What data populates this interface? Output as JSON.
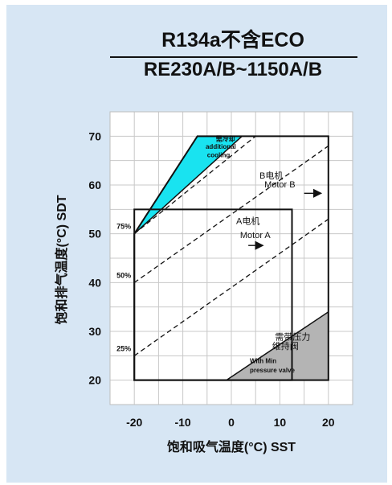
{
  "chart_data": {
    "type": "area",
    "title": "R134a不含ECO",
    "subtitle": "RE230A/B~1150A/B",
    "xlabel": "饱和吸气温度(°C) SST",
    "ylabel": "饱和排气温度(°C) SDT",
    "xlim": [
      -25,
      25
    ],
    "ylim": [
      15,
      75
    ],
    "xticks": [
      "-20",
      "-10",
      "0",
      "10",
      "20"
    ],
    "yticks": [
      "20",
      "30",
      "40",
      "50",
      "60",
      "70"
    ],
    "grid": true,
    "regions": [
      {
        "label": "Motor B envelope",
        "polygon": [
          [
            -20,
            20
          ],
          [
            20,
            20
          ],
          [
            20,
            70
          ],
          [
            -7,
            70
          ],
          [
            -20,
            50
          ]
        ],
        "style": "outline"
      },
      {
        "label": "Motor A envelope",
        "polygon": [
          [
            -20,
            20
          ],
          [
            12.5,
            20
          ],
          [
            12.5,
            55
          ],
          [
            -20,
            55
          ]
        ],
        "style": "outline"
      },
      {
        "label": "additional cooling",
        "polygon": [
          [
            -20,
            50
          ],
          [
            -7,
            70
          ],
          [
            2.2,
            70
          ]
        ],
        "color": "#19e3f0"
      },
      {
        "label": "min pressure valve",
        "polygon": [
          [
            -1,
            20
          ],
          [
            20,
            20
          ],
          [
            20,
            34
          ]
        ],
        "color": "#b4b4b4"
      }
    ],
    "lines": [
      {
        "label": "75%",
        "points": [
          [
            -20,
            50
          ],
          [
            5,
            70
          ]
        ]
      },
      {
        "label": "50%",
        "points": [
          [
            -20,
            40
          ],
          [
            20,
            68
          ]
        ]
      },
      {
        "label": "25%",
        "points": [
          [
            -20,
            25
          ],
          [
            20,
            53
          ]
        ]
      }
    ],
    "annotations": [
      {
        "id": "cooling-cn",
        "text": "需冷却",
        "x": -3.2,
        "y": 69
      },
      {
        "id": "cooling-en1",
        "text": "additional",
        "x": -5.3,
        "y": 67.4
      },
      {
        "id": "cooling-en2",
        "text": "cooling",
        "x": -5.0,
        "y": 65.7
      },
      {
        "id": "motorb-cn",
        "text": "B电机",
        "x": 5.8,
        "y": 61.3
      },
      {
        "id": "motorb-en",
        "text": "Motor B",
        "x": 6.8,
        "y": 59.5
      },
      {
        "id": "motora-cn",
        "text": "A电机",
        "x": 1.0,
        "y": 52
      },
      {
        "id": "motora-en",
        "text": "Motor A",
        "x": 1.8,
        "y": 49.1
      },
      {
        "id": "valve-cn1",
        "text": "需带压力",
        "x": 9.0,
        "y": 28.3
      },
      {
        "id": "valve-cn2",
        "text": "维持阀",
        "x": 8.4,
        "y": 26.4
      },
      {
        "id": "valve-en1",
        "text": "With Min",
        "x": 3.8,
        "y": 23.5
      },
      {
        "id": "valve-en2",
        "text": "pressure valve",
        "x": 3.8,
        "y": 21.6
      }
    ],
    "arrows": [
      {
        "id": "motora-arrow",
        "from": [
          3.5,
          47.6
        ],
        "to": [
          6.5,
          47.6
        ]
      },
      {
        "id": "motorb-arrow",
        "from": [
          15,
          58.3
        ],
        "to": [
          18.5,
          58.3
        ]
      }
    ]
  }
}
